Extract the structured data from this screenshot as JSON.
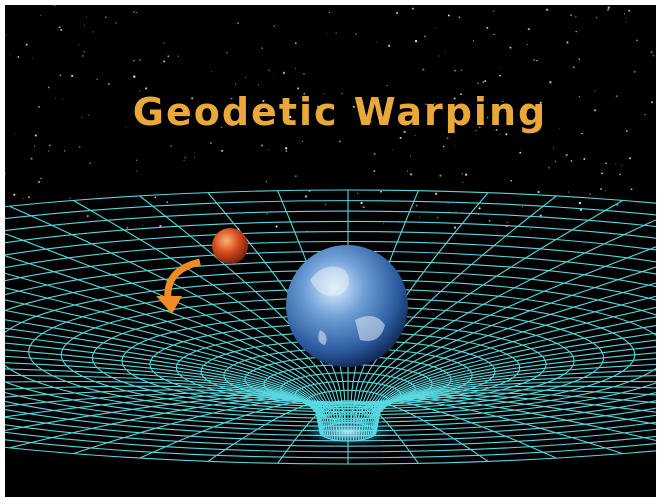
{
  "title": "Geodetic Warping"
}
